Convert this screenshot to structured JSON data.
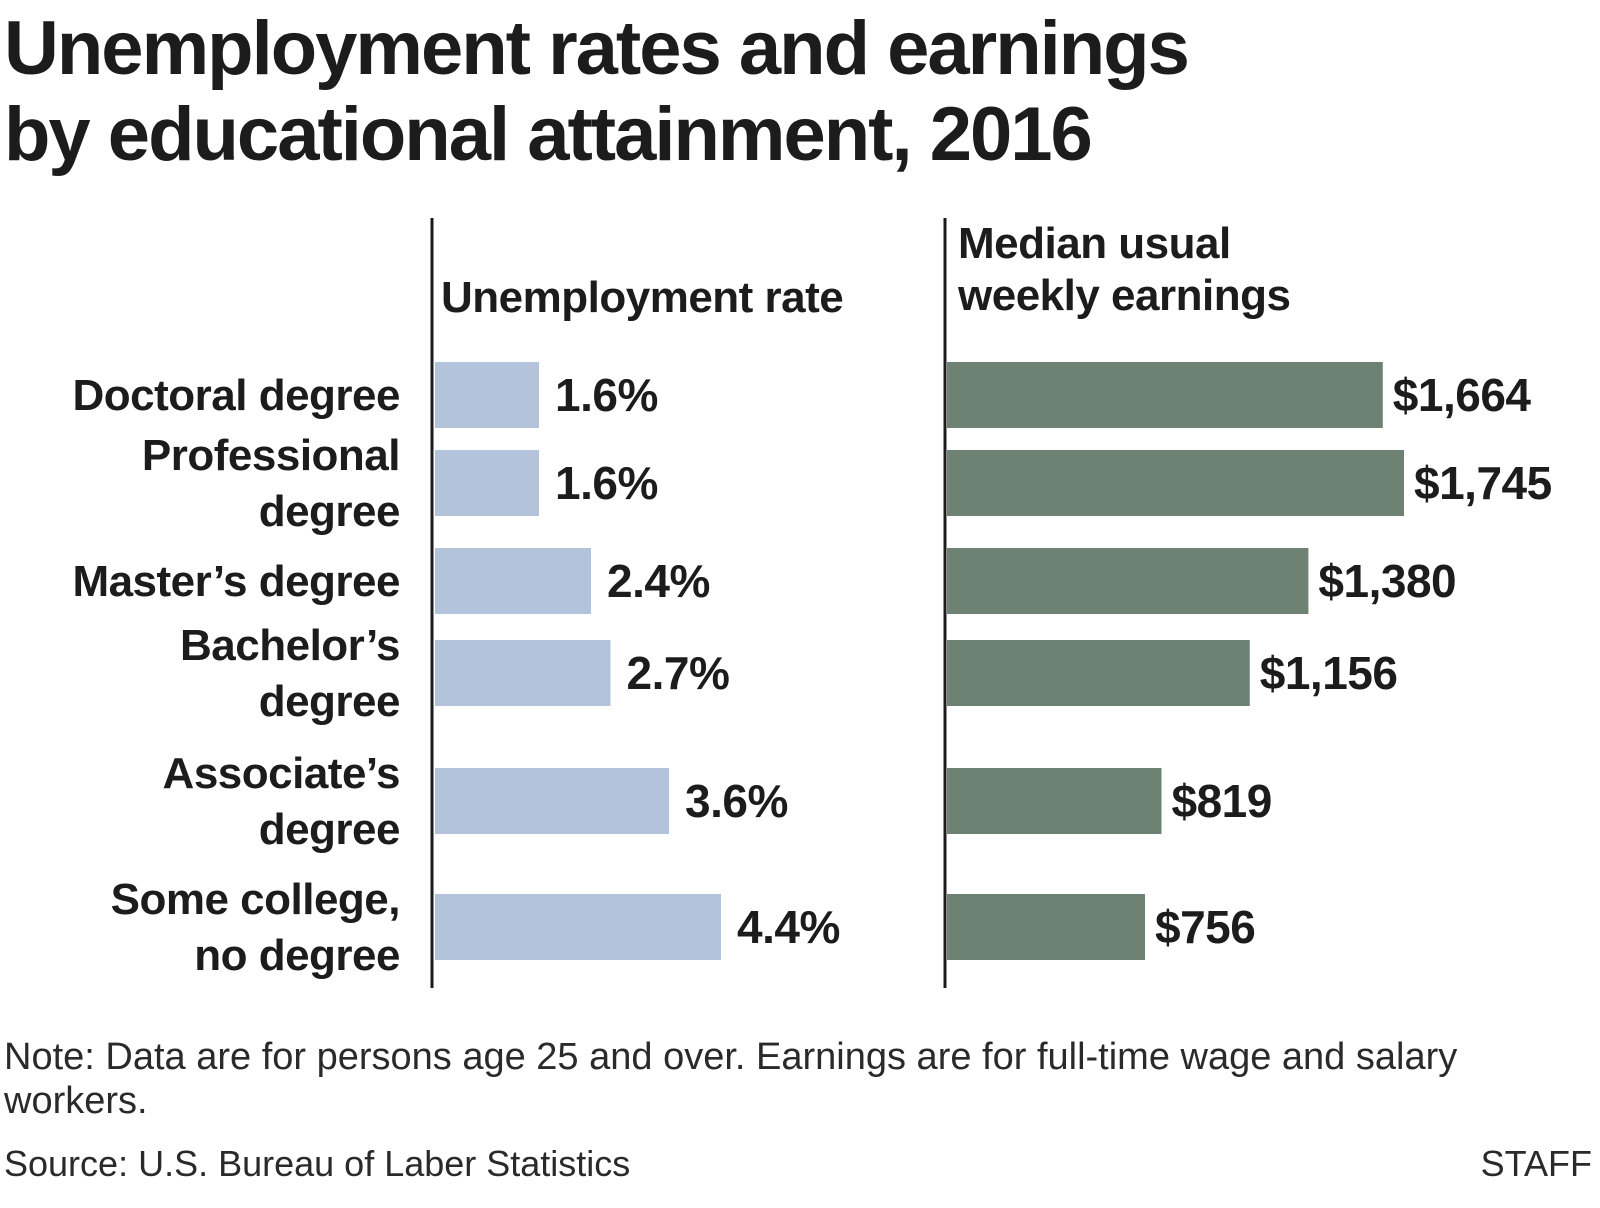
{
  "title_line1": "Unemployment rates and earnings",
  "title_line2": "by educational attainment, 2016",
  "note": "Note: Data are for persons age 25 and over. Earnings are for full-time wage and salary workers.",
  "source": "Source: U.S. Bureau of Laber Statistics",
  "credit": "STAFF",
  "colors": {
    "unemployment_bar": "#b3c3db",
    "earnings_bar": "#6e8274",
    "axis_line": "#1c1c1c"
  },
  "chart_data": [
    {
      "type": "bar",
      "orientation": "horizontal",
      "title": "Unemployment rate",
      "categories": [
        [
          "Doctoral degree"
        ],
        [
          "Professional",
          "degree"
        ],
        [
          "Master’s degree"
        ],
        [
          "Bachelor’s",
          "degree"
        ],
        [
          "Associate’s",
          "degree"
        ],
        [
          "Some college,",
          "no degree"
        ]
      ],
      "values": [
        1.6,
        1.6,
        2.4,
        2.7,
        3.6,
        4.4
      ],
      "value_labels": [
        "1.6%",
        "1.6%",
        "2.4%",
        "2.7%",
        "3.6%",
        "4.4%"
      ],
      "unit": "%"
    },
    {
      "type": "bar",
      "orientation": "horizontal",
      "title_lines": [
        "Median usual",
        "weekly earnings"
      ],
      "values": [
        1664,
        1745,
        1380,
        1156,
        819,
        756
      ],
      "value_labels": [
        "$1,664",
        "$1,745",
        "$1,380",
        "$1,156",
        "$819",
        "$756"
      ],
      "unit": "$"
    }
  ]
}
